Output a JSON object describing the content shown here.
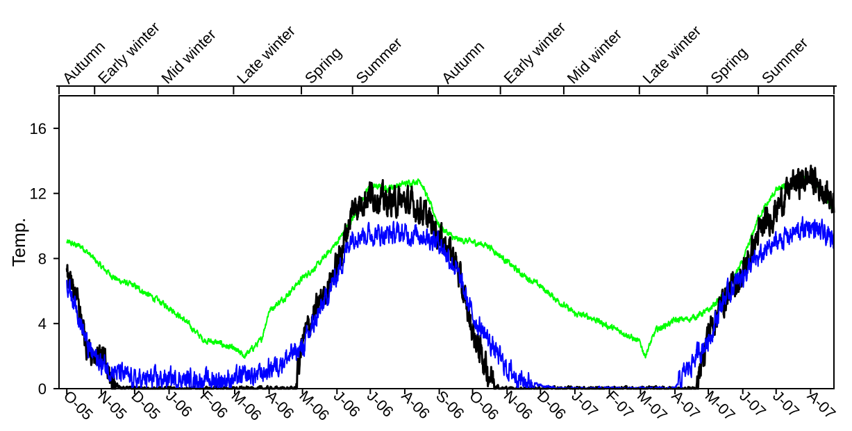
{
  "chart_data": {
    "type": "line",
    "ylabel": "Temp.",
    "ylim": [
      0,
      18
    ],
    "yticks": [
      0,
      4,
      8,
      12,
      16
    ],
    "xlim": [
      "2005-09-24",
      "2007-08-22"
    ],
    "grid": false,
    "legend": "none",
    "x_ticks": [
      {
        "label": "O-05",
        "date": "2005-10-01"
      },
      {
        "label": "N-05",
        "date": "2005-11-01"
      },
      {
        "label": "D-05",
        "date": "2005-12-01"
      },
      {
        "label": "J-06",
        "date": "2006-01-01"
      },
      {
        "label": "F-06",
        "date": "2006-02-01"
      },
      {
        "label": "M-06",
        "date": "2006-03-01"
      },
      {
        "label": "A-06",
        "date": "2006-04-01"
      },
      {
        "label": "M-06",
        "date": "2006-05-01"
      },
      {
        "label": "J-06",
        "date": "2006-06-01"
      },
      {
        "label": "J-06",
        "date": "2006-07-01"
      },
      {
        "label": "A-06",
        "date": "2006-08-01"
      },
      {
        "label": "S-06",
        "date": "2006-09-01"
      },
      {
        "label": "O-06",
        "date": "2006-10-01"
      },
      {
        "label": "N-06",
        "date": "2006-11-01"
      },
      {
        "label": "D-06",
        "date": "2006-12-01"
      },
      {
        "label": "J-07",
        "date": "2007-01-01"
      },
      {
        "label": "F-07",
        "date": "2007-02-01"
      },
      {
        "label": "M-07",
        "date": "2007-03-01"
      },
      {
        "label": "A-07",
        "date": "2007-04-01"
      },
      {
        "label": "M-07",
        "date": "2007-05-01"
      },
      {
        "label": "J-07",
        "date": "2007-06-01"
      },
      {
        "label": "J-07",
        "date": "2007-07-01"
      },
      {
        "label": "A-07",
        "date": "2007-08-01"
      }
    ],
    "seasons": [
      {
        "label": "Autumn",
        "start": "2005-09-24",
        "end": "2005-10-26"
      },
      {
        "label": "Early winter",
        "start": "2005-10-26",
        "end": "2005-12-22"
      },
      {
        "label": "Mid winter",
        "start": "2005-12-22",
        "end": "2006-02-28"
      },
      {
        "label": "Late winter",
        "start": "2006-02-28",
        "end": "2006-04-30"
      },
      {
        "label": "Spring",
        "start": "2006-04-30",
        "end": "2006-06-15"
      },
      {
        "label": "Summer",
        "start": "2006-06-15",
        "end": "2006-08-31"
      },
      {
        "label": "Autumn",
        "start": "2006-08-31",
        "end": "2006-10-26"
      },
      {
        "label": "Early winter",
        "start": "2006-10-26",
        "end": "2006-12-22"
      },
      {
        "label": "Mid winter",
        "start": "2006-12-22",
        "end": "2007-02-28"
      },
      {
        "label": "Late winter",
        "start": "2007-02-28",
        "end": "2007-04-30"
      },
      {
        "label": "Spring",
        "start": "2007-04-30",
        "end": "2007-06-15"
      },
      {
        "label": "Summer",
        "start": "2007-06-15",
        "end": "2007-08-22"
      }
    ],
    "series": [
      {
        "color": "#00ff00",
        "width": 2,
        "noise": 0.35,
        "points": [
          [
            "2005-10-01",
            9.0
          ],
          [
            "2005-10-15",
            8.7
          ],
          [
            "2005-11-01",
            7.5
          ],
          [
            "2005-11-15",
            6.7
          ],
          [
            "2005-12-01",
            6.3
          ],
          [
            "2005-12-15",
            5.7
          ],
          [
            "2006-01-01",
            5.0
          ],
          [
            "2006-01-15",
            4.2
          ],
          [
            "2006-02-01",
            3.0
          ],
          [
            "2006-02-15",
            2.8
          ],
          [
            "2006-03-01",
            2.4
          ],
          [
            "2006-03-10",
            2.0
          ],
          [
            "2006-03-25",
            3.0
          ],
          [
            "2006-04-01",
            4.8
          ],
          [
            "2006-04-15",
            5.6
          ],
          [
            "2006-05-01",
            6.8
          ],
          [
            "2006-05-15",
            7.6
          ],
          [
            "2006-06-01",
            9.0
          ],
          [
            "2006-06-15",
            10.4
          ],
          [
            "2006-07-01",
            12.5
          ],
          [
            "2006-07-15",
            12.3
          ],
          [
            "2006-08-01",
            12.6
          ],
          [
            "2006-08-15",
            12.8
          ],
          [
            "2006-09-01",
            10.0
          ],
          [
            "2006-09-15",
            9.2
          ],
          [
            "2006-10-01",
            9.0
          ],
          [
            "2006-10-15",
            8.8
          ],
          [
            "2006-11-01",
            7.8
          ],
          [
            "2006-11-15",
            7.0
          ],
          [
            "2006-12-01",
            6.3
          ],
          [
            "2006-12-15",
            5.5
          ],
          [
            "2007-01-01",
            4.6
          ],
          [
            "2007-01-15",
            4.4
          ],
          [
            "2007-02-01",
            3.8
          ],
          [
            "2007-02-15",
            3.4
          ],
          [
            "2007-03-01",
            2.8
          ],
          [
            "2007-03-05",
            2.0
          ],
          [
            "2007-03-15",
            3.6
          ],
          [
            "2007-04-01",
            4.2
          ],
          [
            "2007-04-15",
            4.3
          ],
          [
            "2007-05-01",
            4.8
          ],
          [
            "2007-05-15",
            5.8
          ],
          [
            "2007-06-01",
            7.8
          ],
          [
            "2007-06-15",
            10.5
          ],
          [
            "2007-07-01",
            12.2
          ],
          [
            "2007-07-15",
            12.5
          ],
          [
            "2007-08-01",
            13.0
          ],
          [
            "2007-08-22",
            11.0
          ]
        ]
      },
      {
        "color": "#000000",
        "width": 3,
        "noise": 1.6,
        "points": [
          [
            "2005-10-01",
            6.8
          ],
          [
            "2005-10-10",
            5.5
          ],
          [
            "2005-10-20",
            2.5
          ],
          [
            "2005-11-01",
            2.0
          ],
          [
            "2005-11-10",
            0.5
          ],
          [
            "2005-11-20",
            0.0
          ],
          [
            "2006-01-01",
            0.0
          ],
          [
            "2006-02-01",
            0.0
          ],
          [
            "2006-03-01",
            0.0
          ],
          [
            "2006-04-01",
            0.0
          ],
          [
            "2006-04-25",
            0.0
          ],
          [
            "2006-05-01",
            3.0
          ],
          [
            "2006-05-15",
            5.0
          ],
          [
            "2006-06-01",
            7.5
          ],
          [
            "2006-06-15",
            11.0
          ],
          [
            "2006-07-01",
            12.0
          ],
          [
            "2006-07-15",
            11.5
          ],
          [
            "2006-08-01",
            11.5
          ],
          [
            "2006-08-15",
            11.0
          ],
          [
            "2006-09-01",
            9.5
          ],
          [
            "2006-09-15",
            8.0
          ],
          [
            "2006-10-01",
            3.5
          ],
          [
            "2006-10-15",
            1.0
          ],
          [
            "2006-10-25",
            0.0
          ],
          [
            "2007-01-01",
            0.0
          ],
          [
            "2007-04-01",
            0.0
          ],
          [
            "2007-04-20",
            0.0
          ],
          [
            "2007-05-01",
            3.5
          ],
          [
            "2007-05-15",
            5.5
          ],
          [
            "2007-06-01",
            7.0
          ],
          [
            "2007-06-15",
            9.5
          ],
          [
            "2007-07-01",
            11.0
          ],
          [
            "2007-07-15",
            12.5
          ],
          [
            "2007-08-01",
            13.0
          ],
          [
            "2007-08-22",
            11.5
          ]
        ]
      },
      {
        "color": "#0000ff",
        "width": 2,
        "noise": 1.2,
        "points": [
          [
            "2005-10-01",
            6.5
          ],
          [
            "2005-10-10",
            5.0
          ],
          [
            "2005-10-20",
            2.5
          ],
          [
            "2005-11-01",
            1.5
          ],
          [
            "2005-11-15",
            1.0
          ],
          [
            "2005-12-01",
            0.5
          ],
          [
            "2006-01-01",
            0.6
          ],
          [
            "2006-02-01",
            0.5
          ],
          [
            "2006-03-01",
            0.6
          ],
          [
            "2006-03-25",
            0.9
          ],
          [
            "2006-04-01",
            1.2
          ],
          [
            "2006-04-15",
            1.8
          ],
          [
            "2006-05-01",
            2.5
          ],
          [
            "2006-05-15",
            4.5
          ],
          [
            "2006-06-01",
            7.0
          ],
          [
            "2006-06-15",
            9.5
          ],
          [
            "2006-07-01",
            9.5
          ],
          [
            "2006-07-15",
            9.5
          ],
          [
            "2006-08-01",
            9.5
          ],
          [
            "2006-08-15",
            9.5
          ],
          [
            "2006-09-01",
            9.0
          ],
          [
            "2006-09-15",
            7.5
          ],
          [
            "2006-10-01",
            4.5
          ],
          [
            "2006-10-15",
            3.0
          ],
          [
            "2006-11-01",
            1.2
          ],
          [
            "2006-11-15",
            0.5
          ],
          [
            "2006-12-01",
            0.2
          ],
          [
            "2006-12-15",
            0.0
          ],
          [
            "2007-01-01",
            0.0
          ],
          [
            "2007-03-15",
            0.0
          ],
          [
            "2007-04-01",
            0.0
          ],
          [
            "2007-04-15",
            1.5
          ],
          [
            "2007-05-01",
            3.0
          ],
          [
            "2007-05-15",
            5.5
          ],
          [
            "2007-06-01",
            7.0
          ],
          [
            "2007-06-15",
            8.0
          ],
          [
            "2007-07-01",
            9.0
          ],
          [
            "2007-07-15",
            9.5
          ],
          [
            "2007-08-01",
            10.0
          ],
          [
            "2007-08-22",
            9.0
          ]
        ]
      }
    ]
  }
}
